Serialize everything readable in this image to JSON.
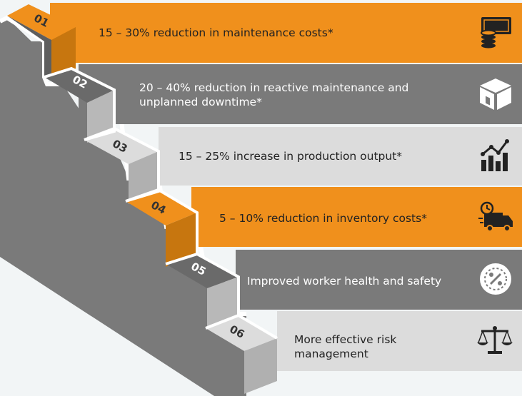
{
  "steps": [
    {
      "number": "01",
      "text": "15 – 30% reduction in maintenance costs*",
      "icon": "money-stack-icon"
    },
    {
      "number": "02",
      "text": "20 – 40% reduction in reactive maintenance and unplanned downtime*",
      "icon": "box-icon"
    },
    {
      "number": "03",
      "text": "15 – 25% increase in production output*",
      "icon": "growth-chart-icon"
    },
    {
      "number": "04",
      "text": "5 – 10% reduction in inventory costs*",
      "icon": "delivery-truck-clock-icon"
    },
    {
      "number": "05",
      "text": "Improved worker health and safety",
      "icon": "percent-badge-icon"
    },
    {
      "number": "06",
      "text": "More effective risk management",
      "icon": "balance-scale-icon"
    }
  ],
  "colors": {
    "orange": "#f0901c",
    "orange_dark": "#c7760f",
    "gray": "#7a7a7a",
    "light": "#dcdcdc",
    "side_dark": "#666666",
    "wall": "#707070",
    "page": "#f2f5f6"
  }
}
